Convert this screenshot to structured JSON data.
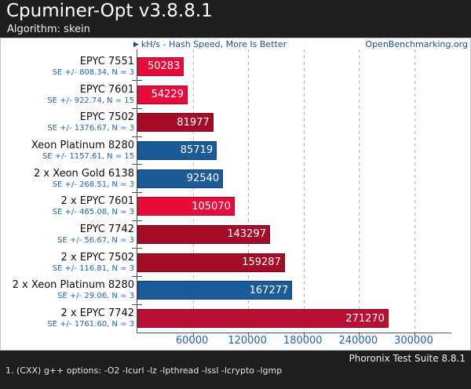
{
  "header": {
    "title": "Cpuminer-Opt v3.8.8.1",
    "subtitle": "Algorithm: skein"
  },
  "meta": {
    "unit_label": "kH/s - Hash Speed, More Is Better",
    "site": "OpenBenchmarking.org"
  },
  "footer": {
    "suite_version": "Phoronix Test Suite 8.8.1",
    "note": "1. (CXX) g++ options: -O2 -lcurl -lz -lpthread -lssl -lcrypto -lgmp"
  },
  "chart_data": {
    "type": "bar",
    "orientation": "horizontal",
    "title": "Cpuminer-Opt v3.8.8.1",
    "subtitle": "Algorithm: skein",
    "value_label": "kH/s - Hash Speed, More Is Better",
    "watermark": "OpenBenchmarking.org",
    "xlabel": "kH/s",
    "xlim": [
      0,
      340000
    ],
    "x_ticks": [
      60000,
      120000,
      180000,
      240000,
      300000
    ],
    "grid": "dashed-vertical",
    "rows": [
      {
        "category": "EPYC 7551",
        "se_note": "SE +/- 808.34, N = 3",
        "value": 50283,
        "fill": "#e60c3c",
        "border": "#a80726"
      },
      {
        "category": "EPYC 7601",
        "se_note": "SE +/- 922.74, N = 15",
        "value": 54229,
        "fill": "#e60c3c",
        "border": "#a80726"
      },
      {
        "category": "EPYC 7502",
        "se_note": "SE +/- 1376.67, N = 3",
        "value": 81977,
        "fill": "#a40c28",
        "border": "#72081c"
      },
      {
        "category": "Xeon Platinum 8280",
        "se_note": "SE +/- 1157.61, N = 15",
        "value": 85719,
        "fill": "#1b5b97",
        "border": "#123f6d"
      },
      {
        "category": "2 x Xeon Gold 6138",
        "se_note": "SE +/- 268.51, N = 3",
        "value": 92540,
        "fill": "#1b5b97",
        "border": "#123f6d"
      },
      {
        "category": "2 x EPYC 7601",
        "se_note": "SE +/- 465.08, N = 3",
        "value": 105070,
        "fill": "#e60c3c",
        "border": "#a80726"
      },
      {
        "category": "EPYC 7742",
        "se_note": "SE +/- 56.67, N = 3",
        "value": 143297,
        "fill": "#a40c28",
        "border": "#72081c"
      },
      {
        "category": "2 x EPYC 7502",
        "se_note": "SE +/- 116.81, N = 3",
        "value": 159287,
        "fill": "#a40c28",
        "border": "#72081c"
      },
      {
        "category": "2 x Xeon Platinum 8280",
        "se_note": "SE +/- 29.06, N = 3",
        "value": 167277,
        "fill": "#1b5b97",
        "border": "#123f6d"
      },
      {
        "category": "2 x EPYC 7742",
        "se_note": "SE +/- 1761.60, N = 3",
        "value": 271270,
        "fill": "#b70e33",
        "border": "#820a24"
      }
    ]
  }
}
